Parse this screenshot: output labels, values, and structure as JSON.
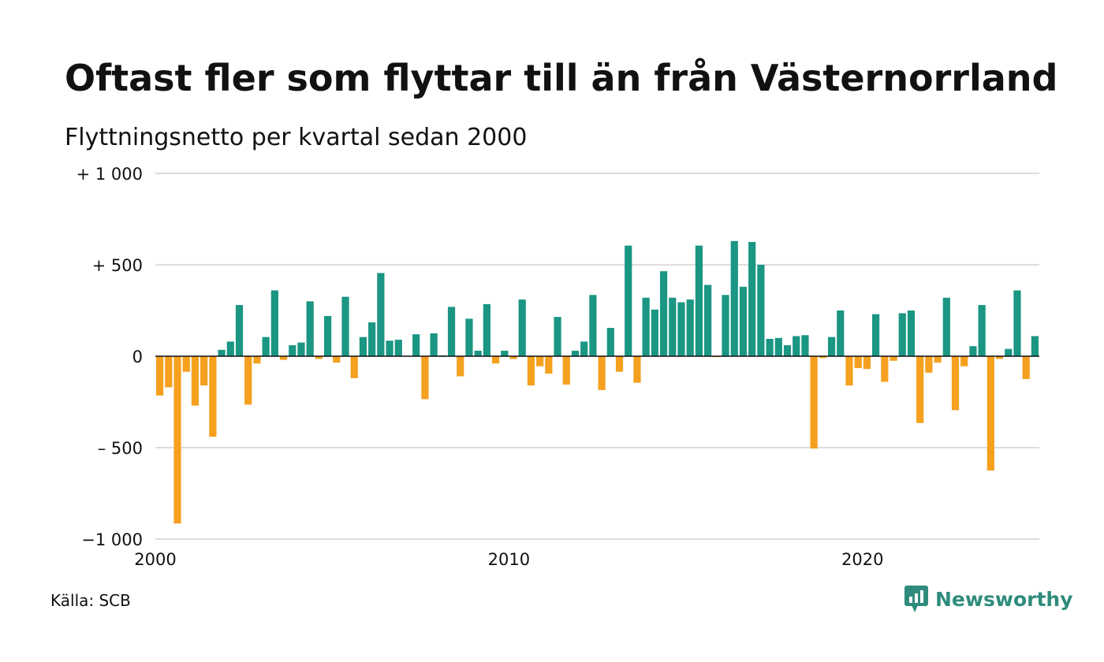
{
  "title": "Oftast fler som flyttar till än från Västernorrland",
  "subtitle": "Flyttningsnetto per kvartal sedan 2000",
  "source": "Källa: SCB",
  "brand": {
    "name": "Newsworthy",
    "icon": "newsworthy-logo-icon",
    "color": "#2f8c7c"
  },
  "chart_data": {
    "type": "bar",
    "x_start": "2000 Q1",
    "y_ticks": [
      {
        "value": 1000,
        "label": "+ 1 000"
      },
      {
        "value": 500,
        "label": "+   500"
      },
      {
        "value": 0,
        "label": "0"
      },
      {
        "value": -500,
        "label": "–  500"
      },
      {
        "value": -1000,
        "label": "−1 000"
      }
    ],
    "x_ticks": [
      {
        "value": 2000,
        "label": "2000"
      },
      {
        "value": 2010,
        "label": "2010"
      },
      {
        "value": 2020,
        "label": "2020"
      }
    ],
    "ylim": [
      -1000,
      1000
    ],
    "grid": true,
    "colors": {
      "positive": "#1a9683",
      "negative": "#f5a01f",
      "grid": "#dddddd",
      "axis": "#111111"
    },
    "values": [
      -215,
      -170,
      -915,
      -85,
      -270,
      -160,
      -440,
      35,
      80,
      280,
      -265,
      -40,
      105,
      360,
      -20,
      60,
      75,
      300,
      -15,
      220,
      -35,
      325,
      -120,
      105,
      185,
      455,
      85,
      90,
      0,
      120,
      -235,
      125,
      5,
      270,
      -110,
      205,
      30,
      285,
      -40,
      30,
      -15,
      310,
      -160,
      -55,
      -95,
      215,
      -155,
      30,
      80,
      335,
      -185,
      155,
      -85,
      605,
      -145,
      320,
      255,
      465,
      320,
      295,
      310,
      605,
      390,
      -5,
      335,
      630,
      380,
      625,
      500,
      95,
      100,
      60,
      110,
      115,
      -505,
      -10,
      105,
      250,
      -160,
      -65,
      -70,
      230,
      -140,
      -25,
      235,
      250,
      -365,
      -90,
      -35,
      320,
      -295,
      -55,
      55,
      280,
      -625,
      -15,
      40,
      360,
      -125,
      110
    ]
  }
}
